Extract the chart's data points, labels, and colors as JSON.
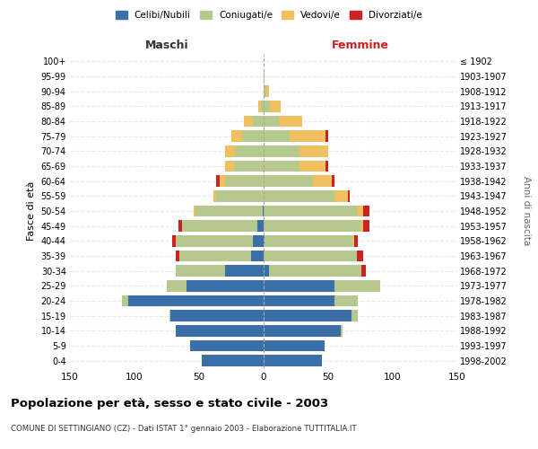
{
  "age_groups": [
    "0-4",
    "5-9",
    "10-14",
    "15-19",
    "20-24",
    "25-29",
    "30-34",
    "35-39",
    "40-44",
    "45-49",
    "50-54",
    "55-59",
    "60-64",
    "65-69",
    "70-74",
    "75-79",
    "80-84",
    "85-89",
    "90-94",
    "95-99",
    "100+"
  ],
  "birth_years": [
    "1998-2002",
    "1993-1997",
    "1988-1992",
    "1983-1987",
    "1978-1982",
    "1973-1977",
    "1968-1972",
    "1963-1967",
    "1958-1962",
    "1953-1957",
    "1948-1952",
    "1943-1947",
    "1938-1942",
    "1933-1937",
    "1928-1932",
    "1923-1927",
    "1918-1922",
    "1913-1917",
    "1908-1912",
    "1903-1907",
    "≤ 1902"
  ],
  "male": {
    "celibi": [
      48,
      57,
      68,
      72,
      105,
      60,
      30,
      10,
      8,
      5,
      1,
      0,
      0,
      0,
      0,
      0,
      0,
      0,
      0,
      0,
      0
    ],
    "coniugati": [
      0,
      0,
      0,
      1,
      5,
      15,
      38,
      55,
      60,
      58,
      52,
      37,
      30,
      23,
      22,
      17,
      8,
      2,
      0,
      0,
      0
    ],
    "vedovi": [
      0,
      0,
      0,
      0,
      0,
      0,
      0,
      0,
      0,
      0,
      1,
      2,
      4,
      7,
      8,
      8,
      7,
      2,
      0,
      0,
      0
    ],
    "divorziati": [
      0,
      0,
      0,
      0,
      0,
      0,
      0,
      3,
      3,
      3,
      0,
      0,
      3,
      0,
      0,
      0,
      0,
      0,
      0,
      0,
      0
    ]
  },
  "female": {
    "nubili": [
      45,
      47,
      60,
      68,
      55,
      55,
      4,
      0,
      1,
      0,
      0,
      0,
      0,
      0,
      0,
      0,
      0,
      0,
      0,
      0,
      0
    ],
    "coniugate": [
      0,
      0,
      1,
      5,
      18,
      35,
      72,
      72,
      68,
      75,
      72,
      55,
      38,
      28,
      28,
      20,
      12,
      5,
      2,
      1,
      0
    ],
    "vedove": [
      0,
      0,
      0,
      0,
      0,
      0,
      0,
      0,
      1,
      2,
      5,
      10,
      15,
      20,
      22,
      28,
      18,
      8,
      2,
      0,
      0
    ],
    "divorziate": [
      0,
      0,
      0,
      0,
      0,
      0,
      3,
      5,
      3,
      5,
      5,
      2,
      2,
      2,
      0,
      2,
      0,
      0,
      0,
      0,
      0
    ]
  },
  "colors": {
    "celibi": "#3a6fa8",
    "coniugati": "#b5c98e",
    "vedovi": "#f0c060",
    "divorziati": "#cc2222"
  },
  "xlim": 150,
  "title": "Popolazione per età, sesso e stato civile - 2003",
  "subtitle": "COMUNE DI SETTINGIANO (CZ) - Dati ISTAT 1° gennaio 2003 - Elaborazione TUTTITALIA.IT",
  "ylabel_left": "Fasce di età",
  "ylabel_right": "Anni di nascita",
  "xlabel_left": "Maschi",
  "xlabel_right": "Femmine"
}
